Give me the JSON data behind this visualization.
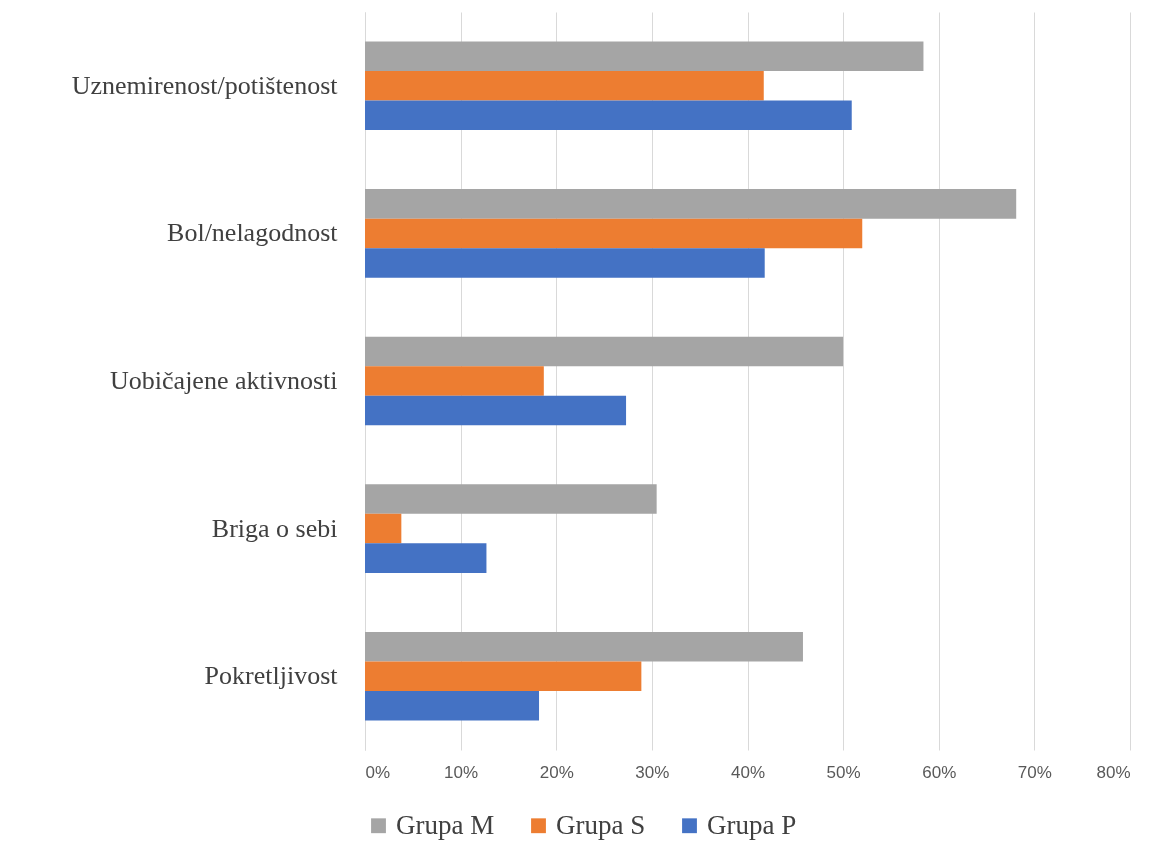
{
  "chart_data": {
    "type": "bar",
    "orientation": "horizontal",
    "categories": [
      "Uznemirenost/potištenost",
      "Bol/nelagodnost",
      "Uobičajene aktivnosti",
      "Briga o sebi",
      "Pokretljivost"
    ],
    "series": [
      {
        "name": "Grupa M",
        "color": "#a5a5a5",
        "values": [
          58.4,
          68.1,
          50.0,
          30.5,
          45.8
        ]
      },
      {
        "name": "Grupa S",
        "color": "#ed7d31",
        "values": [
          41.7,
          52.0,
          18.7,
          3.8,
          28.9
        ]
      },
      {
        "name": "Grupa P",
        "color": "#4472c4",
        "values": [
          50.9,
          41.8,
          27.3,
          12.7,
          18.2
        ]
      }
    ],
    "xlim": [
      0,
      80
    ],
    "xticks": [
      {
        "value": 0,
        "label": "0%"
      },
      {
        "value": 10,
        "label": "10%"
      },
      {
        "value": 20,
        "label": "20%"
      },
      {
        "value": 30,
        "label": "30%"
      },
      {
        "value": 40,
        "label": "40%"
      },
      {
        "value": 50,
        "label": "50%"
      },
      {
        "value": 60,
        "label": "60%"
      },
      {
        "value": 70,
        "label": "70%"
      },
      {
        "value": 80,
        "label": "80%"
      }
    ],
    "grid": "x",
    "legend": "bottom"
  }
}
